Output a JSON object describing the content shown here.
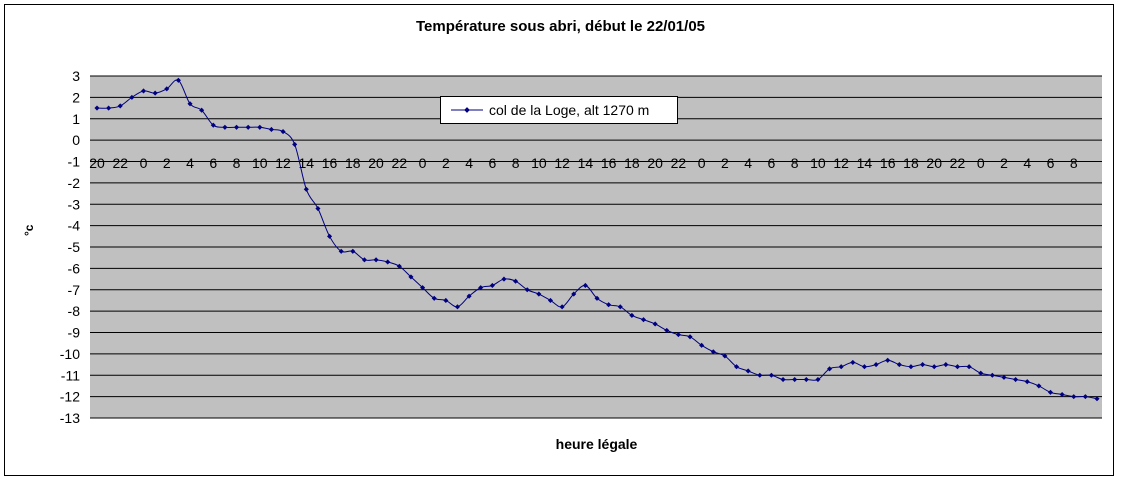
{
  "chart_data": {
    "type": "line",
    "title": "Température sous abri, début le 22/01/05",
    "xlabel": "heure légale",
    "ylabel": "°c",
    "ylim": [
      -13,
      3
    ],
    "yticks": [
      3,
      2,
      1,
      0,
      -1,
      -2,
      -3,
      -4,
      -5,
      -6,
      -7,
      -8,
      -9,
      -10,
      -11,
      -12,
      -13
    ],
    "xtick_labels": [
      "20",
      "22",
      "0",
      "2",
      "4",
      "6",
      "8",
      "10",
      "12",
      "14",
      "16",
      "18",
      "20",
      "22",
      "0",
      "2",
      "4",
      "6",
      "8",
      "10",
      "12",
      "14",
      "16",
      "18",
      "20",
      "22",
      "0",
      "2",
      "4",
      "6",
      "8",
      "10",
      "12",
      "14",
      "16",
      "18",
      "20",
      "22",
      "0",
      "2",
      "4",
      "6",
      "8"
    ],
    "grid": true,
    "legend_position": "top-center",
    "colors": {
      "line": "#000080",
      "plot_background": "#c0c0c0",
      "grid": "#000000"
    },
    "series": [
      {
        "name": "col de la Loge, alt 1270 m",
        "x_start_hour": 20,
        "values": [
          1.5,
          1.5,
          1.6,
          2.0,
          2.3,
          2.2,
          2.4,
          2.8,
          1.7,
          1.4,
          0.7,
          0.6,
          0.6,
          0.6,
          0.6,
          0.5,
          0.4,
          -0.2,
          -2.3,
          -3.2,
          -4.5,
          -5.2,
          -5.2,
          -5.6,
          -5.6,
          -5.7,
          -5.9,
          -6.4,
          -6.9,
          -7.4,
          -7.5,
          -7.8,
          -7.3,
          -6.9,
          -6.8,
          -6.5,
          -6.6,
          -7.0,
          -7.2,
          -7.5,
          -7.8,
          -7.2,
          -6.8,
          -7.4,
          -7.7,
          -7.8,
          -8.2,
          -8.4,
          -8.6,
          -8.9,
          -9.1,
          -9.2,
          -9.6,
          -9.9,
          -10.1,
          -10.6,
          -10.8,
          -11.0,
          -11.0,
          -11.2,
          -11.2,
          -11.2,
          -11.2,
          -10.7,
          -10.6,
          -10.4,
          -10.6,
          -10.5,
          -10.3,
          -10.5,
          -10.6,
          -10.5,
          -10.6,
          -10.5,
          -10.6,
          -10.6,
          -10.9,
          -11.0,
          -11.1,
          -11.2,
          -11.3,
          -11.5,
          -11.8,
          -11.9,
          -12.0,
          -12.0,
          -12.1
        ]
      }
    ]
  }
}
